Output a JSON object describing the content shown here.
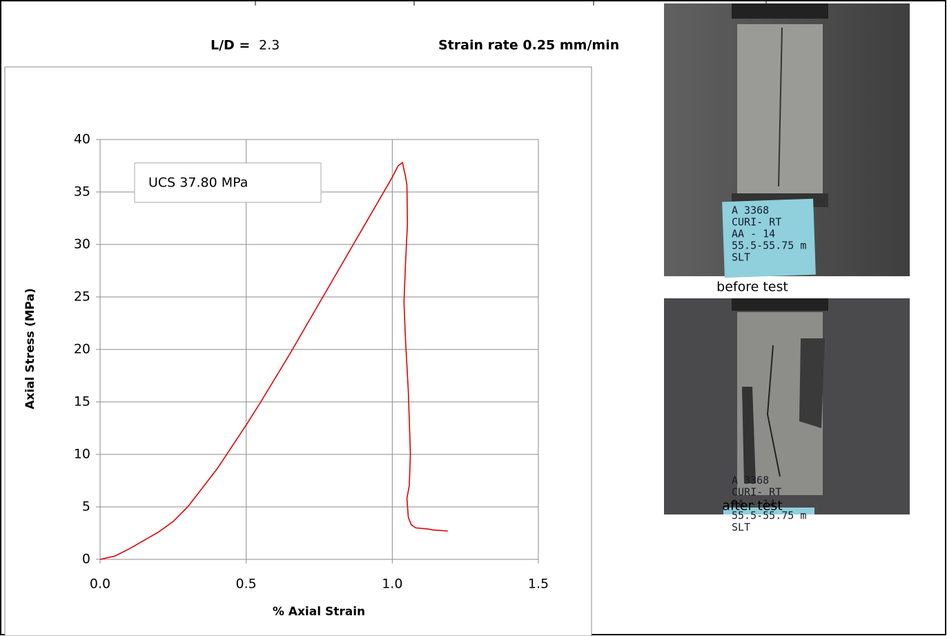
{
  "header": {
    "ld_label": "L/D =",
    "ld_value": "2.3",
    "strain_rate": "Strain rate 0.25 mm/min"
  },
  "photos": [
    {
      "caption": "before test",
      "label_lines": [
        "A 3368",
        "CURI- RT",
        "AA - 14",
        "55.5-55.75 m",
        "SLT"
      ]
    },
    {
      "caption": "after test",
      "label_lines": [
        "A 3368",
        "CURI- RT",
        "AA - 14",
        "55.5-55.75 m",
        "SLT"
      ]
    }
  ],
  "chart_data": {
    "type": "line",
    "xlabel": "% Axial Strain",
    "ylabel": "Axial Stress (MPa)",
    "annotation": "UCS 37.80 MPa",
    "x": [
      0,
      0.05,
      0.1,
      0.15,
      0.2,
      0.25,
      0.3,
      0.35,
      0.4,
      0.45,
      0.5,
      0.55,
      0.6,
      0.65,
      0.7,
      0.75,
      0.8,
      0.85,
      0.9,
      0.95,
      1.0,
      1.02,
      1.035,
      1.045,
      1.05,
      1.052,
      1.045,
      1.04,
      1.045,
      1.055,
      1.062,
      1.058,
      1.05,
      1.055,
      1.065,
      1.08,
      1.12,
      1.14,
      1.19
    ],
    "series": [
      {
        "color": "#e00000",
        "values": [
          0,
          0.3,
          1,
          1.8,
          2.6,
          3.6,
          5,
          6.8,
          8.6,
          10.7,
          12.8,
          15,
          17.3,
          19.6,
          22,
          24.4,
          26.8,
          29.2,
          31.6,
          34,
          36.4,
          37.5,
          37.8,
          36.5,
          35.7,
          32,
          28,
          24.5,
          21,
          16,
          10,
          7,
          5.8,
          4,
          3.3,
          3.0,
          2.9,
          2.8,
          2.7
        ]
      }
    ],
    "xlim": [
      0,
      1.5
    ],
    "xticks": [
      {
        "value": 0,
        "label": "0.0"
      },
      {
        "value": 0.5,
        "label": "0.5"
      },
      {
        "value": 1.0,
        "label": "1.0"
      },
      {
        "value": 1.5,
        "label": "1.5"
      }
    ],
    "ylim": [
      0,
      40
    ],
    "yticks": [
      0,
      5,
      10,
      15,
      20,
      25,
      30,
      35,
      40
    ],
    "grid": true
  }
}
